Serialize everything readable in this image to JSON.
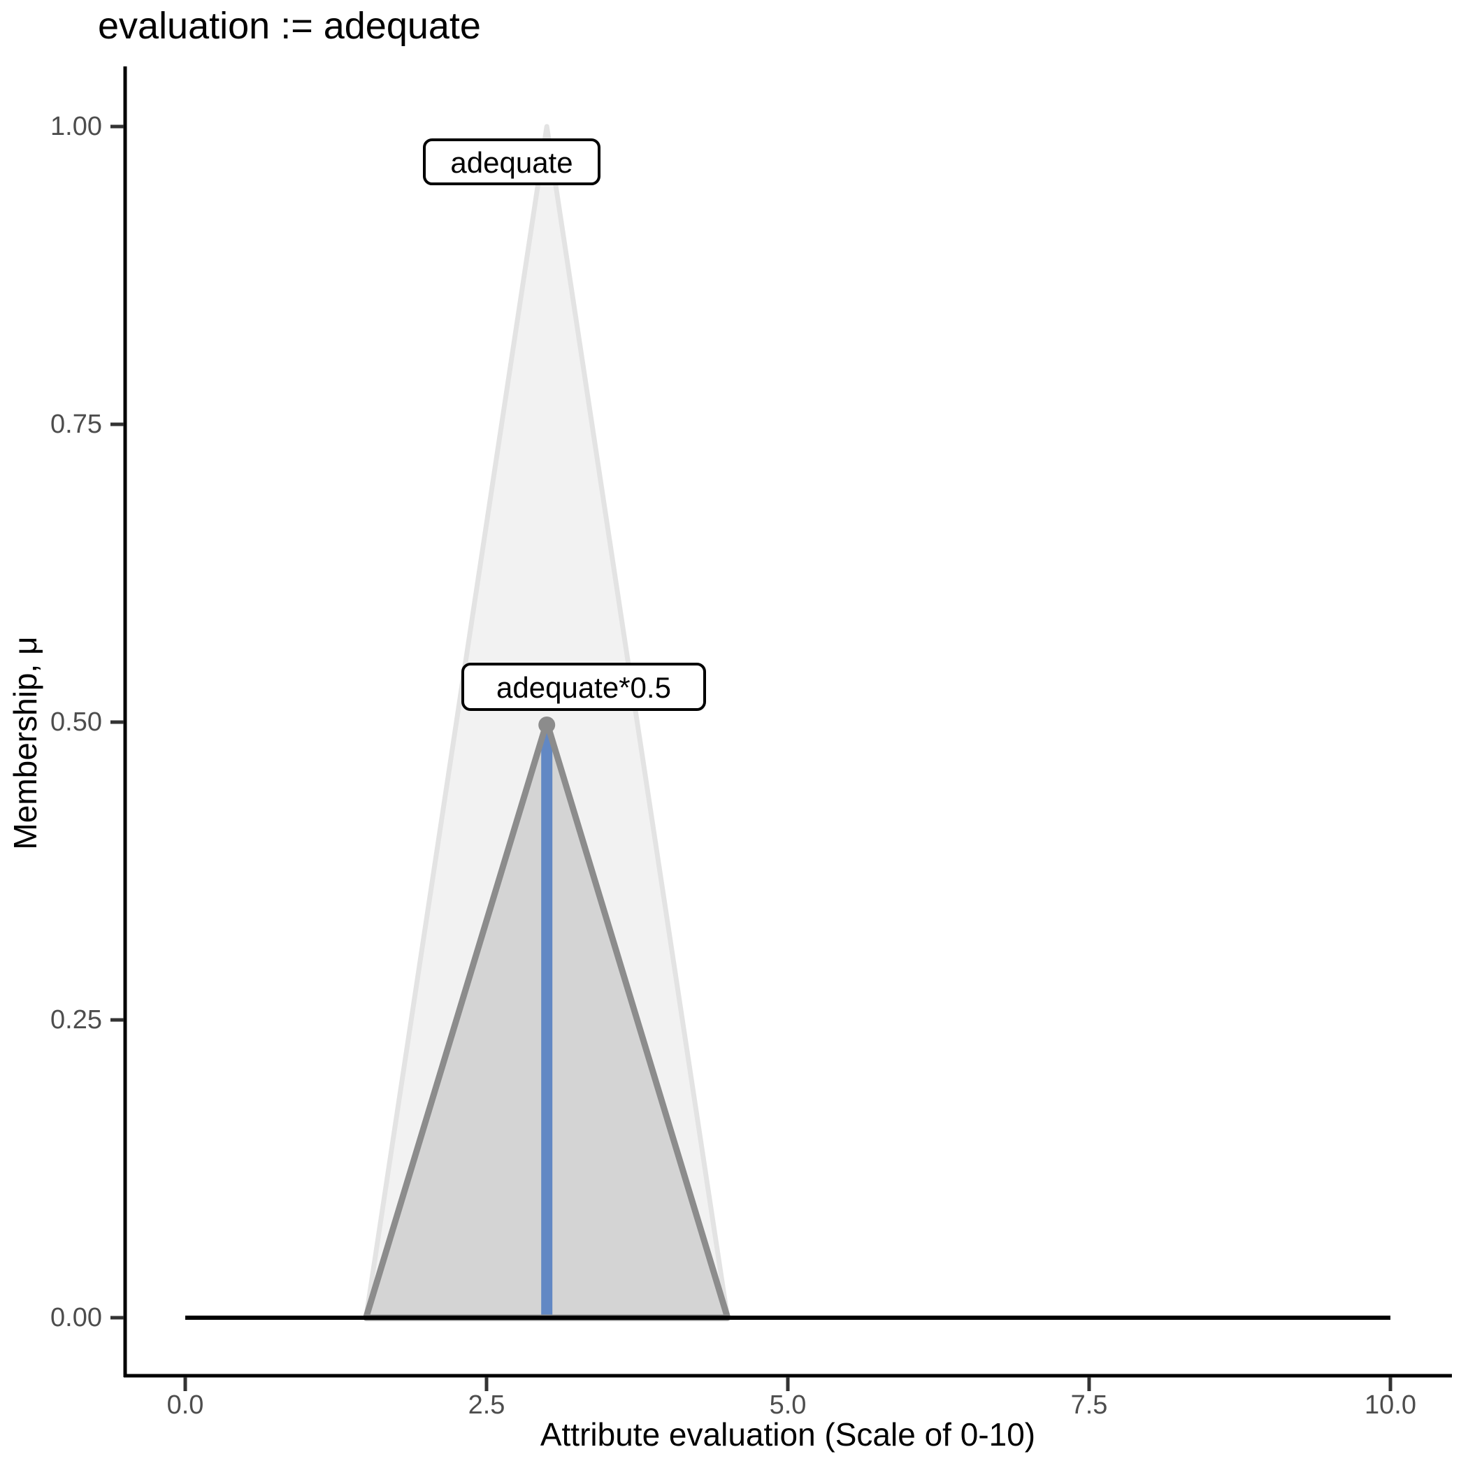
{
  "title": "evaluation := adequate",
  "axes": {
    "x": {
      "label": "Attribute evaluation (Scale of 0-10)",
      "ticks": [
        "0.0",
        "2.5",
        "5.0",
        "7.5",
        "10.0"
      ]
    },
    "y": {
      "label": "Membership, μ",
      "ticks": [
        "1.00",
        "0.75",
        "0.50",
        "0.25",
        "0.00"
      ]
    }
  },
  "annotations": [
    {
      "text": "adequate",
      "anchor_x": 3,
      "anchor_y": 1.0
    },
    {
      "text": "adequate*0.5",
      "anchor_x": 3,
      "anchor_y": 0.5
    }
  ],
  "colors": {
    "background": "#ffffff",
    "axis_line": "#000000",
    "tick_mark": "#333333",
    "tick_label": "#4d4d4d",
    "outer_triangle_fill": "#f2f2f2",
    "outer_triangle_stroke": "#e3e3e3",
    "inner_triangle_fill": "#d4d4d4",
    "inner_triangle_stroke": "#8c8c8c",
    "blue_line": "#6288c4",
    "zero_line": "#000000",
    "annotation_box_fill": "#ffffff",
    "annotation_box_stroke": "#000000"
  },
  "chart_data": {
    "type": "area",
    "title": "evaluation := adequate",
    "xlabel": "Attribute evaluation (Scale of 0-10)",
    "ylabel": "Membership, μ",
    "xlim": [
      0,
      10
    ],
    "ylim": [
      0,
      1
    ],
    "x_ticks": [
      0,
      2.5,
      5,
      7.5,
      10
    ],
    "y_ticks": [
      0,
      0.25,
      0.5,
      0.75,
      1
    ],
    "grid": false,
    "legend": false,
    "series": [
      {
        "name": "adequate",
        "kind": "filled-triangle",
        "points": [
          [
            1.5,
            0
          ],
          [
            3,
            1
          ],
          [
            4.5,
            0
          ]
        ],
        "fill": "#f2f2f2",
        "stroke": "#e3e3e3",
        "stroke_width": 7
      },
      {
        "name": "adequate*0.5",
        "kind": "filled-triangle",
        "points": [
          [
            1.5,
            0
          ],
          [
            3,
            0.5
          ],
          [
            4.5,
            0
          ]
        ],
        "fill": "#d4d4d4",
        "stroke": "#8c8c8c",
        "stroke_width": 9
      },
      {
        "name": "vertical-line-at-3",
        "kind": "vline",
        "x": 3,
        "y_from": 0,
        "y_to": 0.5,
        "color": "#6288c4",
        "stroke_width": 16
      },
      {
        "name": "zero-membership-line",
        "kind": "hline",
        "y": 0,
        "x_from": 0,
        "x_to": 10,
        "color": "#000000",
        "stroke_width": 6
      }
    ]
  }
}
